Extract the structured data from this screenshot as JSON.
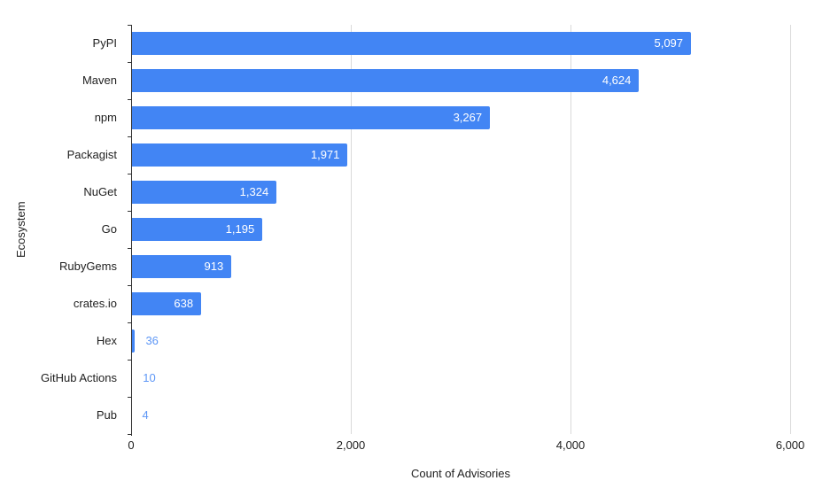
{
  "chart_data": {
    "type": "bar",
    "orientation": "horizontal",
    "title": "",
    "categories": [
      "PyPI",
      "Maven",
      "npm",
      "Packagist",
      "NuGet",
      "Go",
      "RubyGems",
      "crates.io",
      "Hex",
      "GitHub Actions",
      "Pub"
    ],
    "values": [
      5097,
      4624,
      3267,
      1971,
      1324,
      1195,
      913,
      638,
      36,
      10,
      4
    ],
    "value_labels": [
      "5,097",
      "4,624",
      "3,267",
      "1,971",
      "1,324",
      "1,195",
      "913",
      "638",
      "36",
      "10",
      "4"
    ],
    "value_label_positions": [
      "inside",
      "inside",
      "inside",
      "inside",
      "inside",
      "inside",
      "inside",
      "inside",
      "outside",
      "outside",
      "outside"
    ],
    "xlabel": "Count of Advisories",
    "ylabel": "Ecosystem",
    "x_axis": {
      "min": 0,
      "max": 6000,
      "tick_values": [
        0,
        2000,
        4000,
        6000
      ],
      "tick_labels": [
        "0",
        "2,000",
        "4,000",
        "6,000"
      ]
    },
    "grid": true,
    "legend": "none"
  },
  "colors": {
    "background": "#ffffff",
    "bar": "#4285f4",
    "value_label_inside": "#ffffff",
    "value_label_outside": "#5e97f6",
    "text": "#212121",
    "axis_line": "#333333",
    "gridline": "#d9d9d9"
  }
}
